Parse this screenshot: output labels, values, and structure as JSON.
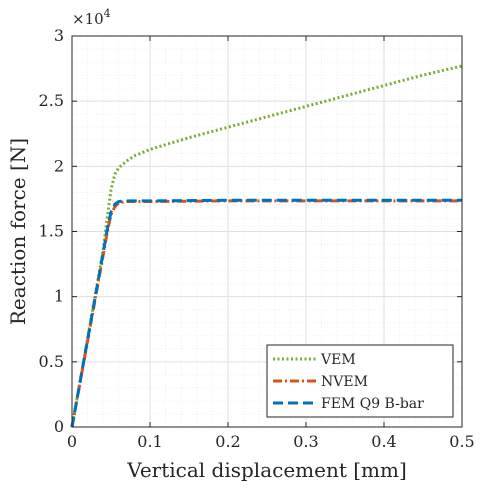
{
  "chart_data": {
    "type": "line",
    "xlabel": "Vertical displacement [mm]",
    "ylabel": "Reaction force [N]",
    "xlim": [
      0,
      0.5
    ],
    "ylim": [
      0,
      30000
    ],
    "x_ticks": [
      "0",
      "0.1",
      "0.2",
      "0.3",
      "0.4",
      "0.5"
    ],
    "y_ticks": [
      "0",
      "0.5",
      "1",
      "1.5",
      "2",
      "2.5",
      "3"
    ],
    "y_exponent_base": "×10",
    "y_exponent_power": "4",
    "grid": true,
    "legend_position": "bottom-right",
    "series": [
      {
        "name": "VEM",
        "color": "#77ac30",
        "style": "dotted",
        "x": [
          0,
          0.01,
          0.02,
          0.03,
          0.04,
          0.045,
          0.05,
          0.055,
          0.06,
          0.07,
          0.08,
          0.1,
          0.15,
          0.2,
          0.25,
          0.3,
          0.35,
          0.4,
          0.45,
          0.5
        ],
        "y": [
          0,
          3400,
          6800,
          10200,
          13600,
          16000,
          18200,
          19400,
          19900,
          20400,
          20800,
          21300,
          22200,
          23000,
          23800,
          24600,
          25400,
          26200,
          27000,
          27700
        ]
      },
      {
        "name": "NVEM",
        "color": "#d95319",
        "style": "dash-dot",
        "x": [
          0,
          0.01,
          0.02,
          0.03,
          0.04,
          0.045,
          0.05,
          0.055,
          0.06,
          0.07,
          0.08,
          0.1,
          0.2,
          0.3,
          0.4,
          0.5
        ],
        "y": [
          0,
          3300,
          6600,
          9900,
          13200,
          14900,
          16300,
          16900,
          17200,
          17300,
          17300,
          17300,
          17350,
          17350,
          17350,
          17350
        ]
      },
      {
        "name": "FEM Q9 B-bar",
        "color": "#0072bd",
        "style": "dashed",
        "x": [
          0,
          0.01,
          0.02,
          0.03,
          0.04,
          0.045,
          0.05,
          0.055,
          0.06,
          0.07,
          0.08,
          0.1,
          0.2,
          0.3,
          0.4,
          0.5
        ],
        "y": [
          0,
          3350,
          6700,
          10050,
          13400,
          15100,
          16500,
          17100,
          17300,
          17350,
          17350,
          17350,
          17400,
          17400,
          17400,
          17400
        ]
      }
    ]
  }
}
